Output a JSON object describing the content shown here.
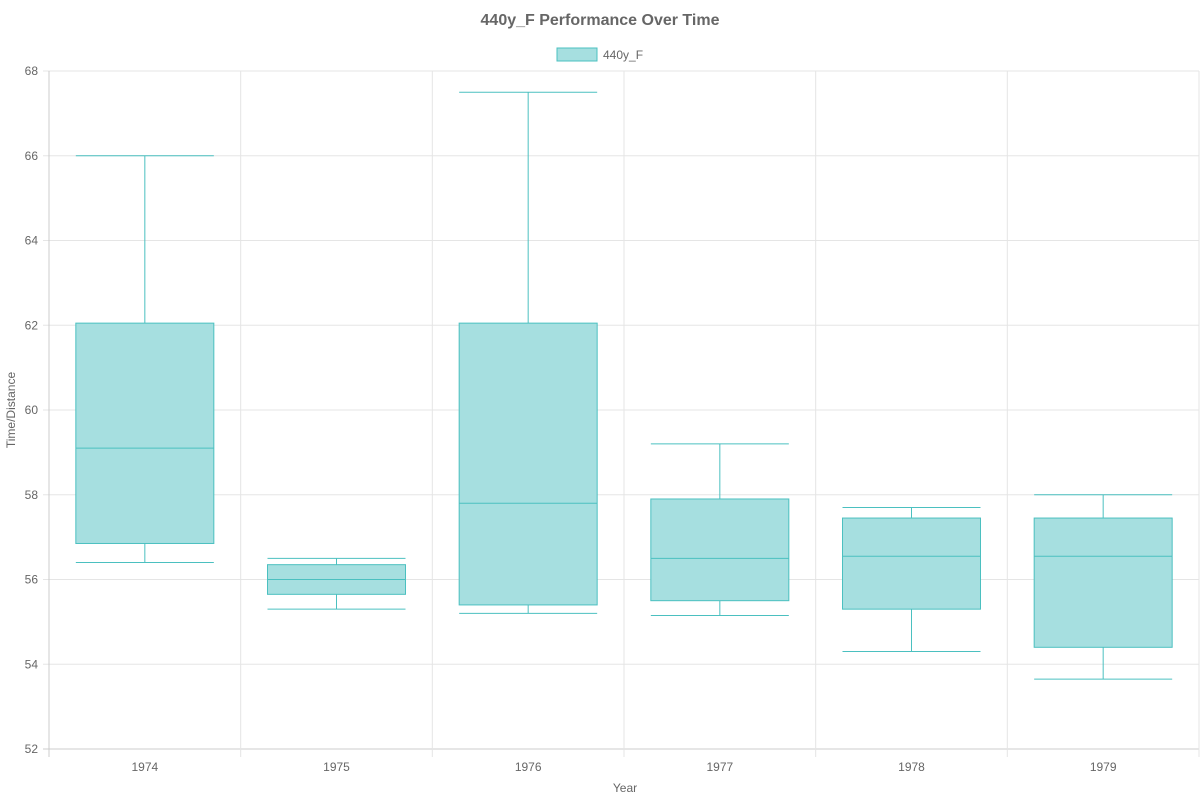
{
  "chart_data": {
    "type": "box",
    "title": "440y_F Performance Over Time",
    "xlabel": "Year",
    "ylabel": "Time/Distance",
    "ylim": [
      52,
      68
    ],
    "yticks": [
      52,
      54,
      56,
      58,
      60,
      62,
      64,
      66,
      68
    ],
    "categories": [
      "1974",
      "1975",
      "1976",
      "1977",
      "1978",
      "1979"
    ],
    "legend": {
      "position": "top",
      "entries": [
        "440y_F"
      ]
    },
    "grid": true,
    "series": [
      {
        "name": "440y_F",
        "color": "#4bc0c0",
        "fill": "#a6dfe0",
        "boxes": [
          {
            "min": 56.4,
            "q1": 56.85,
            "median": 59.1,
            "q3": 62.05,
            "max": 66.0
          },
          {
            "min": 55.3,
            "q1": 55.65,
            "median": 56.0,
            "q3": 56.35,
            "max": 56.5
          },
          {
            "min": 55.2,
            "q1": 55.4,
            "median": 57.8,
            "q3": 62.05,
            "max": 67.5
          },
          {
            "min": 55.15,
            "q1": 55.5,
            "median": 56.5,
            "q3": 57.9,
            "max": 59.2
          },
          {
            "min": 54.3,
            "q1": 55.3,
            "median": 56.55,
            "q3": 57.45,
            "max": 57.7
          },
          {
            "min": 53.65,
            "q1": 54.4,
            "median": 56.55,
            "q3": 57.45,
            "max": 58.0
          }
        ]
      }
    ]
  }
}
